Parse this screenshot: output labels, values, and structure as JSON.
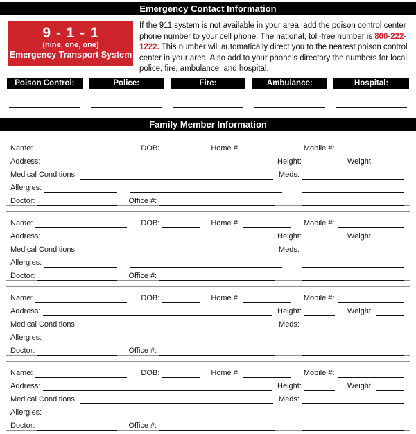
{
  "colors": {
    "accent_red": "#CE252D",
    "phone_red": "#CC2127",
    "bar_black": "#000000",
    "block_border_gray": "#8E8E8E"
  },
  "header": {
    "title": "Emergency Contact Information"
  },
  "emergency_911": {
    "number_display": "9 - 1 - 1",
    "number_words": "(nine, one, one)",
    "system_label": "Emergency Transport System",
    "paragraph_before": "If the 911 system is not available in your area, add the poison control center phone number to your cell phone. The national, toll-free number is ",
    "phone_number": "800-222-1222.",
    "paragraph_after": " This number will automatically direct you to the nearest poison control center in your area. Also add to your phone’s directory the numbers for local police, fire, ambulance, and hospital."
  },
  "emergency_contacts": {
    "items": [
      {
        "label": "Poison Control:",
        "value": ""
      },
      {
        "label": "Police:",
        "value": ""
      },
      {
        "label": "Fire:",
        "value": ""
      },
      {
        "label": "Ambulance:",
        "value": ""
      },
      {
        "label": "Hospital:",
        "value": ""
      }
    ]
  },
  "family_section": {
    "title": "Family Member Information",
    "member_count": 4,
    "field_labels": {
      "name": "Name:",
      "dob": "DOB:",
      "home_phone": "Home #:",
      "mobile_phone": "Mobile #:",
      "address": "Address:",
      "height": "Height:",
      "weight": "Weight:",
      "medical_conditions": "Medical Conditions:",
      "meds": "Meds:",
      "allergies": "Allergies:",
      "doctor": "Doctor:",
      "office_phone": "Office #:"
    },
    "field_values": {
      "name": "",
      "dob": "",
      "home_phone": "",
      "mobile_phone": "",
      "address": "",
      "height": "",
      "weight": "",
      "medical_conditions": "",
      "meds": "",
      "allergies": "",
      "doctor": "",
      "office_phone": ""
    }
  }
}
